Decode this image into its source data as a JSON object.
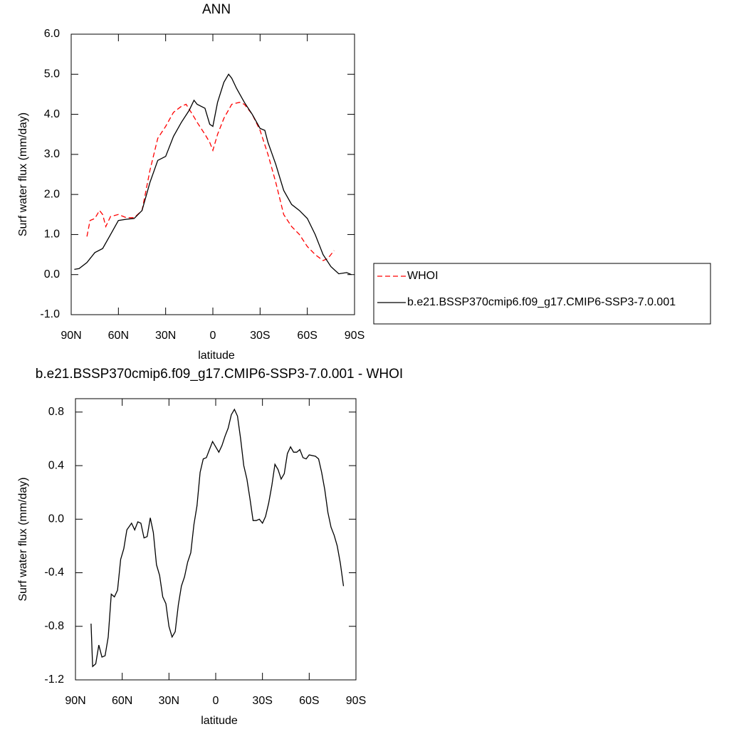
{
  "chart_data": [
    {
      "type": "line",
      "title": "ANN",
      "xlabel": "latitude",
      "ylabel": "Surf water flux (mm/day)",
      "xlim": [
        90,
        -90
      ],
      "xticks": [
        {
          "value": 90,
          "label": "90N"
        },
        {
          "value": 60,
          "label": "60N"
        },
        {
          "value": 30,
          "label": "30N"
        },
        0,
        {
          "value": -30,
          "label": "30S"
        },
        {
          "value": -60,
          "label": "60S"
        },
        {
          "value": -90,
          "label": "90S"
        }
      ],
      "ylim": [
        -1,
        6
      ],
      "yticks": [
        {
          "value": -1,
          "label": "-1.0"
        },
        {
          "value": 0,
          "label": "0.0"
        },
        {
          "value": 1,
          "label": "1.0"
        },
        {
          "value": 2,
          "label": "2.0"
        },
        {
          "value": 3,
          "label": "3.0"
        },
        {
          "value": 4,
          "label": "4.0"
        },
        {
          "value": 5,
          "label": "5.0"
        },
        {
          "value": 6,
          "label": "6.0"
        }
      ],
      "legend": "right",
      "series": [
        {
          "name": "WHOI",
          "color": "#ff0000",
          "dashed": true,
          "x": [
            80,
            78,
            75,
            72,
            70,
            68,
            65,
            60,
            55,
            50,
            45,
            40,
            35,
            30,
            25,
            20,
            17,
            13,
            10,
            5,
            2,
            0,
            -3,
            -7,
            -12,
            -17,
            -20,
            -25,
            -30,
            -35,
            -40,
            -45,
            -50,
            -55,
            -60,
            -65,
            -70,
            -73,
            -77
          ],
          "values": [
            0.95,
            1.35,
            1.4,
            1.6,
            1.5,
            1.2,
            1.45,
            1.5,
            1.42,
            1.42,
            1.6,
            2.6,
            3.4,
            3.7,
            4.05,
            4.2,
            4.25,
            4.0,
            3.8,
            3.5,
            3.3,
            3.1,
            3.5,
            3.9,
            4.25,
            4.3,
            4.25,
            4.0,
            3.6,
            3.0,
            2.3,
            1.5,
            1.2,
            1.0,
            0.7,
            0.5,
            0.35,
            0.4,
            0.6
          ]
        },
        {
          "name": "b.e21.BSSP370cmip6.f09_g17.CMIP6-SSP3-7.0.001",
          "color": "#000000",
          "dashed": false,
          "x": [
            88,
            85,
            80,
            75,
            70,
            65,
            60,
            55,
            50,
            45,
            40,
            35,
            30,
            25,
            20,
            15,
            12,
            10,
            5,
            2,
            0,
            -3,
            -7,
            -10,
            -12,
            -15,
            -20,
            -25,
            -30,
            -33,
            -35,
            -40,
            -45,
            -50,
            -55,
            -60,
            -65,
            -70,
            -75,
            -80,
            -85,
            -88
          ],
          "values": [
            0.13,
            0.15,
            0.3,
            0.55,
            0.65,
            1.0,
            1.35,
            1.38,
            1.4,
            1.6,
            2.3,
            2.85,
            2.95,
            3.45,
            3.8,
            4.1,
            4.35,
            4.25,
            4.15,
            3.75,
            3.7,
            4.3,
            4.8,
            5.0,
            4.9,
            4.65,
            4.3,
            4.0,
            3.65,
            3.6,
            3.3,
            2.75,
            2.1,
            1.75,
            1.6,
            1.4,
            1.0,
            0.5,
            0.2,
            0.02,
            0.05,
            0.0
          ]
        }
      ]
    },
    {
      "type": "line",
      "title": "b.e21.BSSP370cmip6.f09_g17.CMIP6-SSP3-7.0.001 - WHOI",
      "xlabel": "latitude",
      "ylabel": "Surf water flux (mm/day)",
      "xlim": [
        90,
        -90
      ],
      "xticks": [
        {
          "value": 90,
          "label": "90N"
        },
        {
          "value": 60,
          "label": "60N"
        },
        {
          "value": 30,
          "label": "30N"
        },
        0,
        {
          "value": -30,
          "label": "30S"
        },
        {
          "value": -60,
          "label": "60S"
        },
        {
          "value": -90,
          "label": "90S"
        }
      ],
      "ylim": [
        -1.2,
        0.9
      ],
      "yticks": [
        -1.2,
        -0.8,
        -0.4,
        {
          "value": 0,
          "label": "0.0"
        },
        0.4,
        0.8
      ],
      "color": "#000000",
      "x": [
        80,
        79,
        77,
        75,
        73,
        71,
        69,
        67,
        65,
        63,
        61,
        59,
        57,
        54,
        52,
        50,
        48,
        46,
        44,
        42,
        40,
        38,
        36,
        34,
        32,
        30,
        28,
        26,
        24,
        22,
        20,
        18,
        16,
        14,
        12,
        10,
        8,
        6,
        4,
        2,
        0,
        -2,
        -4,
        -6,
        -8,
        -10,
        -12,
        -14,
        -16,
        -18,
        -20,
        -22,
        -24,
        -26,
        -28,
        -30,
        -32,
        -34,
        -36,
        -38,
        -40,
        -42,
        -44,
        -46,
        -48,
        -50,
        -52,
        -54,
        -56,
        -58,
        -60,
        -64,
        -66,
        -68,
        -70,
        -72,
        -74,
        -76,
        -78,
        -80,
        -82
      ],
      "values": [
        -0.78,
        -1.1,
        -1.08,
        -0.94,
        -1.03,
        -1.02,
        -0.88,
        -0.56,
        -0.58,
        -0.53,
        -0.3,
        -0.22,
        -0.08,
        -0.03,
        -0.08,
        -0.02,
        -0.03,
        -0.14,
        -0.13,
        0.01,
        -0.1,
        -0.34,
        -0.42,
        -0.58,
        -0.63,
        -0.8,
        -0.88,
        -0.84,
        -0.64,
        -0.5,
        -0.43,
        -0.32,
        -0.25,
        -0.04,
        0.1,
        0.35,
        0.45,
        0.46,
        0.52,
        0.58,
        0.54,
        0.5,
        0.55,
        0.62,
        0.68,
        0.78,
        0.82,
        0.77,
        0.6,
        0.4,
        0.3,
        0.15,
        -0.01,
        -0.01,
        0.0,
        -0.03,
        0.02,
        0.12,
        0.25,
        0.41,
        0.37,
        0.3,
        0.34,
        0.49,
        0.54,
        0.5,
        0.5,
        0.52,
        0.46,
        0.45,
        0.48,
        0.47,
        0.45,
        0.35,
        0.22,
        0.05,
        -0.06,
        -0.12,
        -0.2,
        -0.33,
        -0.5
      ]
    }
  ]
}
